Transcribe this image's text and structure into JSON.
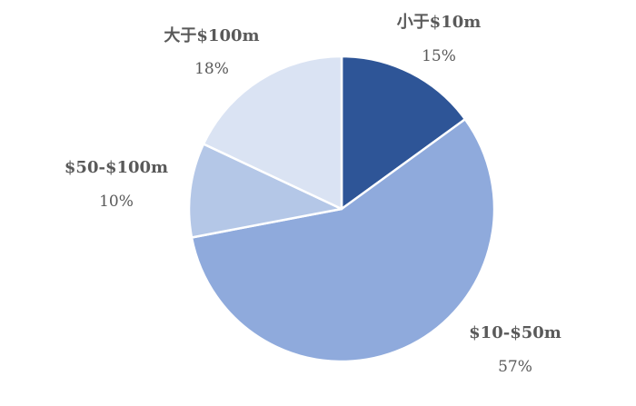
{
  "chart_data": {
    "type": "pie",
    "slices": [
      {
        "label": "小于$10m",
        "value": 15,
        "value_label": "15%",
        "color": "#2E5597"
      },
      {
        "label": "$10-$50m",
        "value": 57,
        "value_label": "57%",
        "color": "#8FAADC"
      },
      {
        "label": "$50-$100m",
        "value": 10,
        "value_label": "10%",
        "color": "#B4C7E7"
      },
      {
        "label": "大于$100m",
        "value": 18,
        "value_label": "18%",
        "color": "#DAE3F3"
      }
    ],
    "start": "12 o'clock",
    "direction": "clockwise",
    "legend": "none",
    "slice_border_color": "#FFFFFF"
  }
}
